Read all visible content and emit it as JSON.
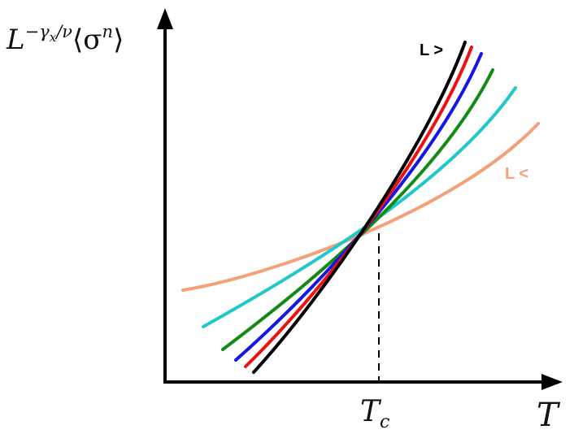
{
  "diagram": {
    "y_axis_label": {
      "base": "L",
      "exponent_gamma": "−γ",
      "exponent_sub": "x",
      "exponent_rest": "/ν",
      "bracket_open": "⟨σ",
      "power": "n",
      "bracket_close": "⟩"
    },
    "x_axis_label": "T",
    "critical_point": {
      "symbol": "T",
      "subscript": "c"
    },
    "annotations": {
      "large_L": {
        "text": "L >",
        "color": "#000000"
      },
      "small_L": {
        "text": "L <",
        "color": "#f4a07a"
      }
    },
    "curves": [
      {
        "color": "#f4a07a",
        "order": 0
      },
      {
        "color": "#20c8c8",
        "order": 1
      },
      {
        "color": "#138a13",
        "order": 2
      },
      {
        "color": "#1515e6",
        "order": 3
      },
      {
        "color": "#ee1111",
        "order": 4
      },
      {
        "color": "#000000",
        "order": 5
      }
    ]
  }
}
